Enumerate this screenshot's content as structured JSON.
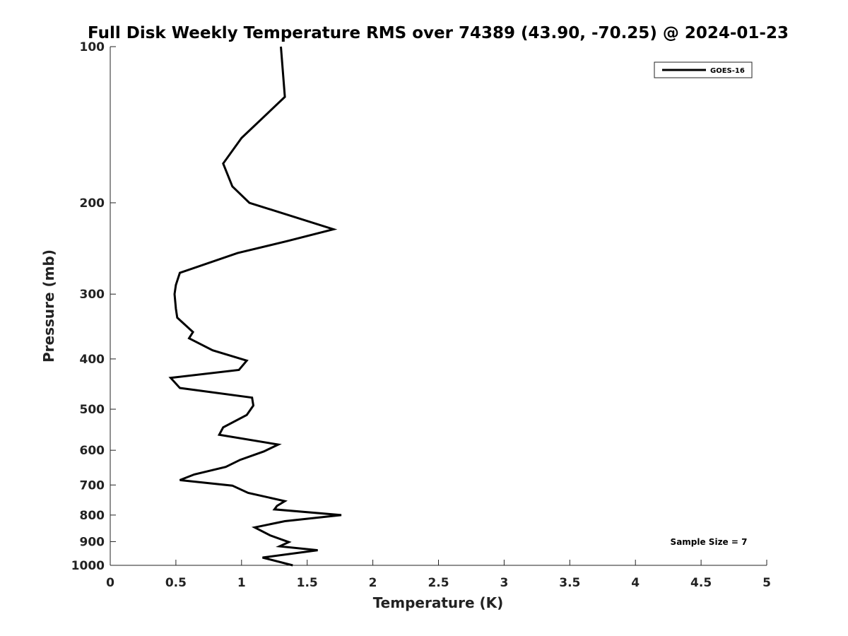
{
  "chart_data": {
    "type": "line",
    "title": "Full Disk Weekly Temperature RMS over 74389 (43.90, -70.25) @ 2024-01-23",
    "xlabel": "Temperature (K)",
    "ylabel": "Pressure (mb)",
    "xlim": [
      0,
      5
    ],
    "ylim": [
      100,
      1000
    ],
    "y_scale": "log",
    "y_reversed": true,
    "x_ticks": [
      "0",
      "0.5",
      "1",
      "1.5",
      "2",
      "2.5",
      "3",
      "3.5",
      "4",
      "4.5",
      "5"
    ],
    "y_ticks": [
      "100",
      "200",
      "300",
      "400",
      "500",
      "600",
      "700",
      "800",
      "900",
      "1000"
    ],
    "grid": false,
    "legend": {
      "position": "top-right",
      "entries": [
        "GOES-16"
      ]
    },
    "annotation": "Sample Size = 7",
    "series": [
      {
        "name": "GOES-16",
        "color": "#000000",
        "points": [
          [
            1.3,
            100
          ],
          [
            1.33,
            125
          ],
          [
            1.0,
            150
          ],
          [
            0.86,
            168
          ],
          [
            0.93,
            186
          ],
          [
            1.06,
            200
          ],
          [
            1.7,
            225
          ],
          [
            1.35,
            237
          ],
          [
            0.97,
            250
          ],
          [
            0.53,
            273
          ],
          [
            0.5,
            288
          ],
          [
            0.49,
            300
          ],
          [
            0.5,
            320
          ],
          [
            0.51,
            333
          ],
          [
            0.63,
            355
          ],
          [
            0.6,
            365
          ],
          [
            0.78,
            385
          ],
          [
            1.04,
            403
          ],
          [
            0.98,
            420
          ],
          [
            0.46,
            435
          ],
          [
            0.53,
            455
          ],
          [
            1.08,
            475
          ],
          [
            1.09,
            492
          ],
          [
            1.04,
            513
          ],
          [
            0.86,
            542
          ],
          [
            0.83,
            560
          ],
          [
            1.28,
            585
          ],
          [
            1.17,
            603
          ],
          [
            0.99,
            626
          ],
          [
            0.88,
            646
          ],
          [
            0.64,
            668
          ],
          [
            0.53,
            685
          ],
          [
            0.93,
            702
          ],
          [
            1.05,
            725
          ],
          [
            1.33,
            752
          ],
          [
            1.27,
            768
          ],
          [
            1.25,
            780
          ],
          [
            1.76,
            800
          ],
          [
            1.33,
            822
          ],
          [
            1.1,
            845
          ],
          [
            1.22,
            876
          ],
          [
            1.36,
            902
          ],
          [
            1.29,
            919
          ],
          [
            1.58,
            935
          ],
          [
            1.16,
            966
          ],
          [
            1.39,
            1000
          ]
        ]
      }
    ]
  }
}
